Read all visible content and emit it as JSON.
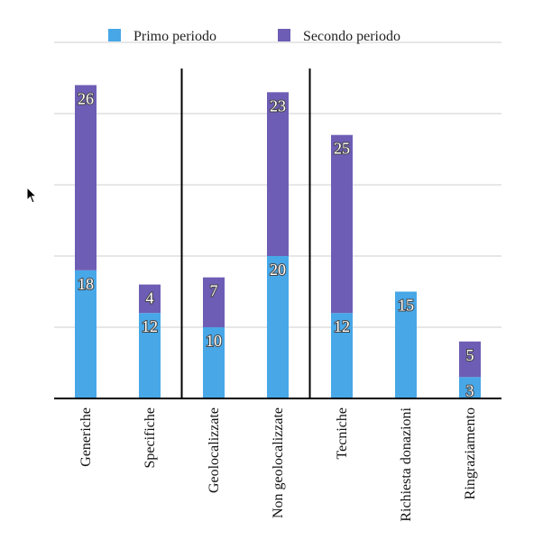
{
  "chart_data": {
    "type": "bar",
    "stacked": true,
    "categories": [
      "Generiche",
      "Specifiche",
      "Geolocalizzate",
      "Non geolocalizzate",
      "Tecniche",
      "Richiesta donazioni",
      "Ringraziamento"
    ],
    "series": [
      {
        "name": "Primo periodo",
        "color": "#47A7E7",
        "values": [
          18,
          12,
          10,
          20,
          12,
          15,
          3
        ]
      },
      {
        "name": "Secondo periodo",
        "color": "#6E5DB5",
        "values": [
          26,
          4,
          7,
          23,
          25,
          0,
          5
        ]
      }
    ],
    "ylim": [
      0,
      50
    ],
    "grid": true,
    "legend_position": "top",
    "group_separators_after": [
      1,
      3
    ]
  }
}
